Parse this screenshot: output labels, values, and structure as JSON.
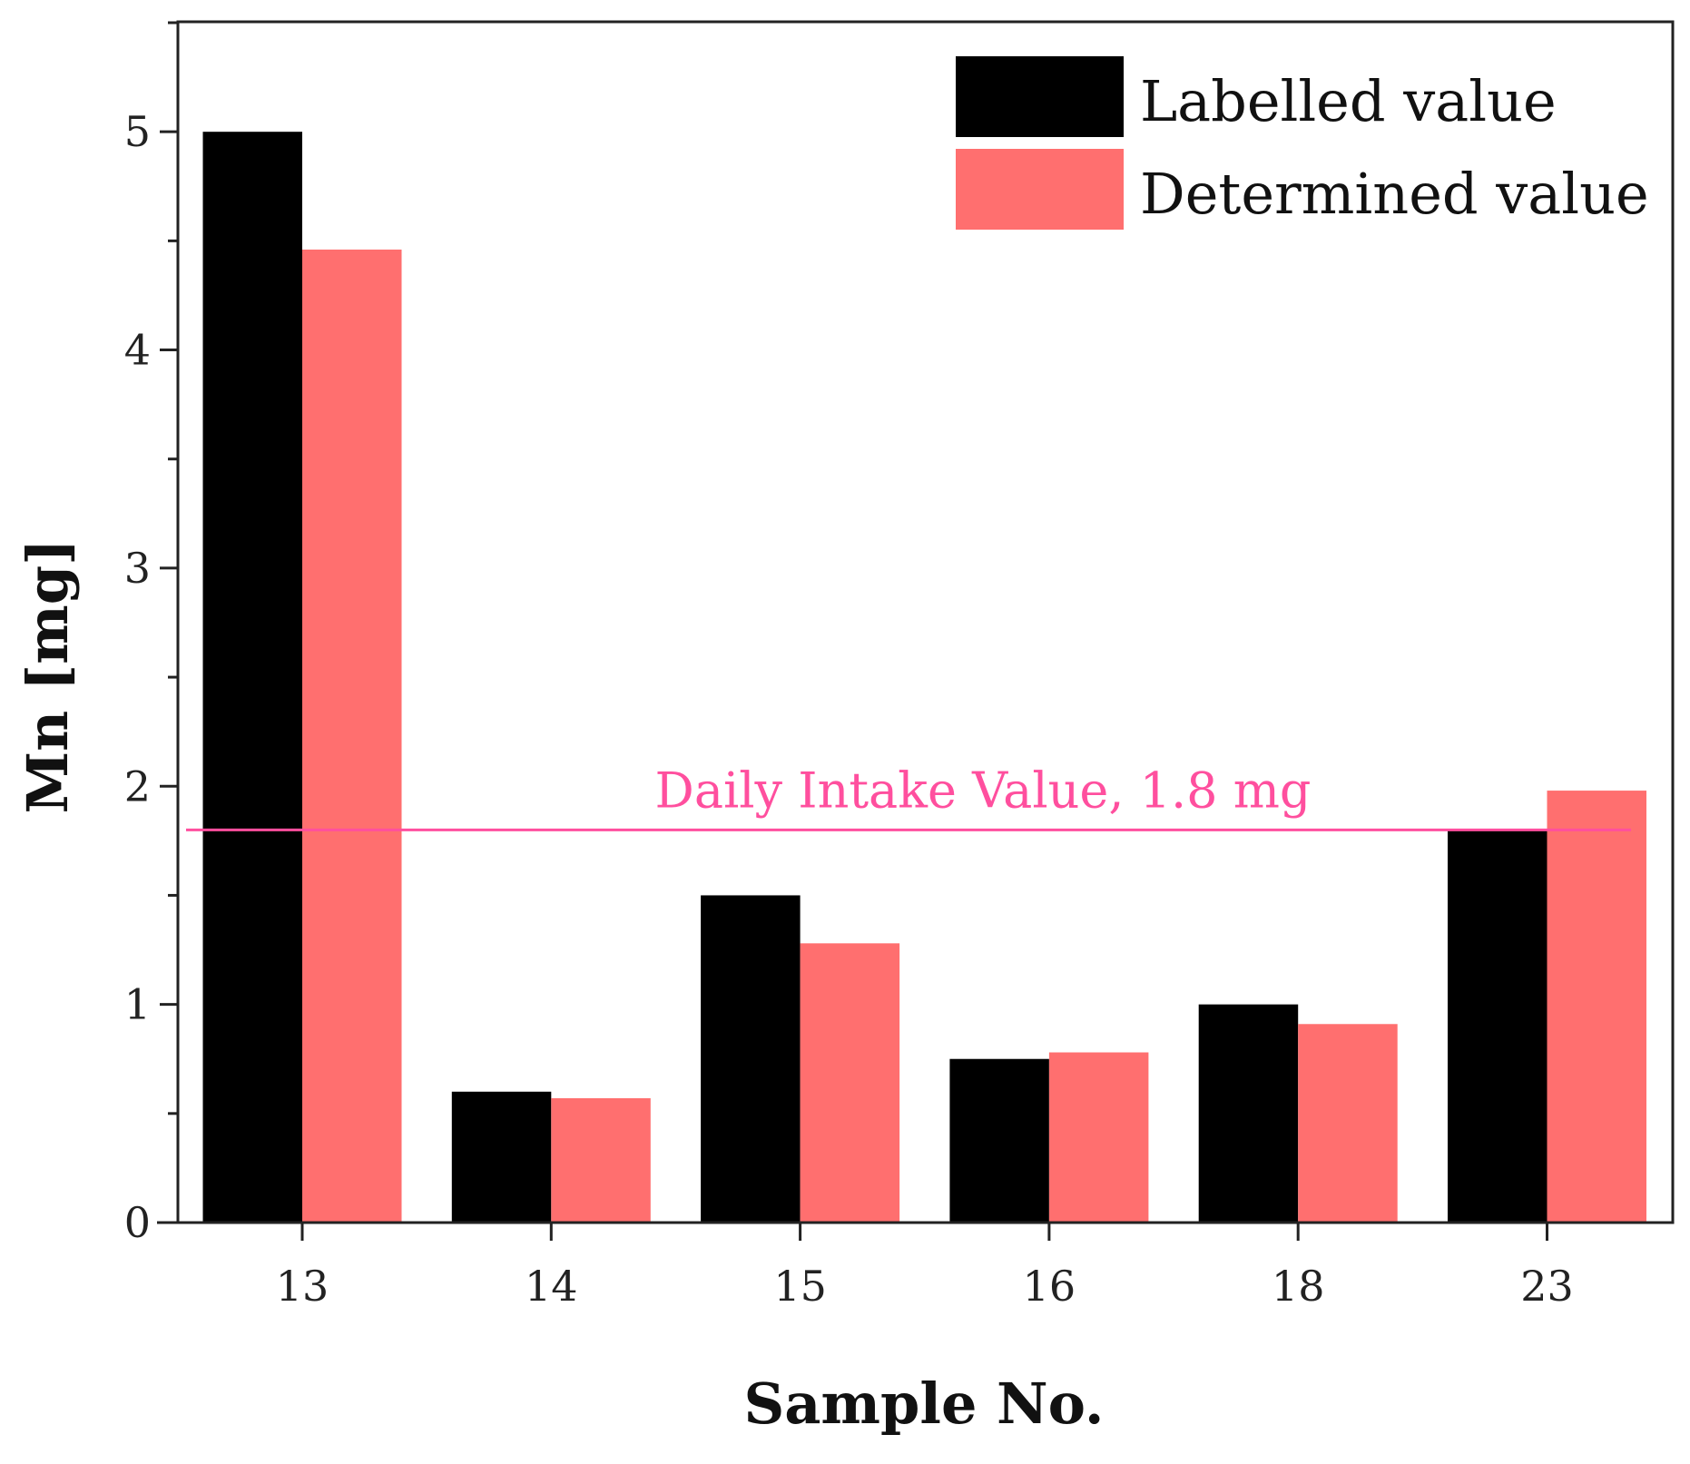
{
  "chart_data": {
    "type": "bar",
    "title": "",
    "xlabel": "Sample No.",
    "ylabel": "Mn [mg]",
    "categories": [
      "13",
      "14",
      "15",
      "16",
      "18",
      "23"
    ],
    "series": [
      {
        "name": "Labelled value",
        "color": "#000000",
        "values": [
          5.0,
          0.6,
          1.5,
          0.75,
          1.0,
          1.8
        ]
      },
      {
        "name": "Determined value",
        "color": "#ff6f6f",
        "values": [
          4.46,
          0.57,
          1.28,
          0.78,
          0.91,
          1.98
        ]
      }
    ],
    "ylim": [
      0,
      5.5
    ],
    "yticks": [
      "0",
      "1",
      "2",
      "3",
      "4",
      "5"
    ],
    "grid": false,
    "legend_position": "top-right",
    "reference_line": {
      "value": 1.8,
      "label": "Daily Intake Value, 1.8 mg",
      "color": "#ff4f9e"
    }
  }
}
